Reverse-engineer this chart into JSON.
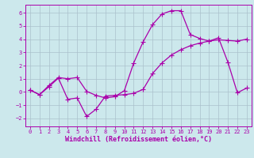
{
  "xlabel": "Windchill (Refroidissement éolien,°C)",
  "background_color": "#cce8ec",
  "grid_color": "#aac0cc",
  "line_color": "#aa00aa",
  "xlim": [
    -0.5,
    23.5
  ],
  "ylim": [
    -2.6,
    6.6
  ],
  "xticks": [
    0,
    1,
    2,
    3,
    4,
    5,
    6,
    7,
    8,
    9,
    10,
    11,
    12,
    13,
    14,
    15,
    16,
    17,
    18,
    19,
    20,
    21,
    22,
    23
  ],
  "yticks": [
    -2,
    -1,
    0,
    1,
    2,
    3,
    4,
    5,
    6
  ],
  "line1_x": [
    0,
    1,
    2,
    3,
    4,
    5,
    6,
    7,
    8,
    9,
    10,
    11,
    12,
    13,
    14,
    15,
    16,
    17,
    18,
    19,
    20,
    21,
    22,
    23
  ],
  "line1_y": [
    0.15,
    -0.2,
    0.5,
    1.1,
    1.0,
    1.1,
    0.05,
    -0.25,
    -0.45,
    -0.35,
    0.1,
    2.2,
    3.8,
    5.1,
    5.9,
    6.15,
    6.15,
    4.35,
    4.05,
    3.85,
    4.1,
    2.25,
    -0.05,
    0.3
  ],
  "line2_x": [
    0,
    1,
    2,
    3,
    4,
    5,
    6,
    7,
    8,
    9,
    10,
    11,
    12,
    13,
    14,
    15,
    16,
    17,
    18,
    19,
    20,
    21,
    22,
    23
  ],
  "line2_y": [
    0.15,
    -0.2,
    0.4,
    1.05,
    -0.55,
    -0.45,
    -1.85,
    -1.3,
    -0.3,
    -0.25,
    -0.2,
    -0.1,
    0.2,
    1.4,
    2.2,
    2.8,
    3.2,
    3.5,
    3.7,
    3.85,
    3.95,
    3.9,
    3.85,
    4.0
  ],
  "marker": "+",
  "markersize": 4,
  "linewidth": 0.9,
  "tick_fontsize": 5.0,
  "label_fontsize": 6.0
}
